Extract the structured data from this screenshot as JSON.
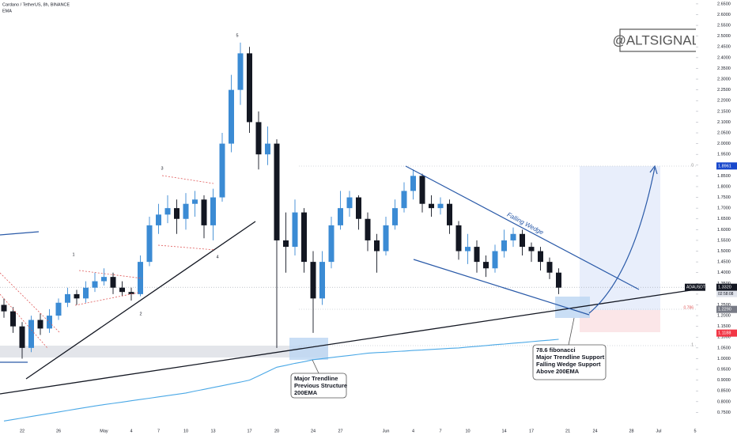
{
  "chart_data": {
    "type": "candlestick",
    "title": "Cardano / TetherUS, 8h, BINANCE",
    "watermark": "@ALTSIGNALS",
    "categories": [
      null,
      null,
      "22",
      null,
      null,
      null,
      "26",
      null,
      null,
      null,
      null,
      "May",
      null,
      null,
      "4",
      null,
      null,
      "7",
      null,
      null,
      "10",
      null,
      null,
      "13",
      null,
      null,
      null,
      "17",
      null,
      null,
      "20",
      null,
      null,
      null,
      "24",
      null,
      null,
      "27",
      null,
      null,
      null,
      null,
      "Jun",
      null,
      null,
      "4",
      null,
      null,
      "7",
      null,
      null,
      "10",
      null,
      null,
      null,
      "14",
      null,
      null,
      "17",
      null,
      null,
      null,
      "21",
      null,
      null,
      "24",
      null,
      null,
      null,
      "28",
      null,
      null,
      "Jul",
      null,
      null,
      null,
      "5"
    ],
    "open": [
      1.25,
      1.22,
      1.15,
      1.05,
      1.18,
      1.14,
      1.2,
      1.26,
      1.3,
      1.28,
      1.33,
      1.36,
      1.38,
      1.33,
      1.31,
      1.3,
      1.45,
      1.62,
      1.67,
      1.7,
      1.65,
      1.72,
      1.74,
      1.62,
      1.75,
      2.0,
      2.25,
      2.42,
      2.1,
      1.95,
      2.0,
      1.55,
      1.52,
      1.68,
      1.45,
      1.28,
      1.45,
      1.62,
      1.7,
      1.75,
      1.65,
      1.55,
      1.5,
      1.62,
      1.7,
      1.78,
      1.85,
      1.72,
      1.7,
      1.72,
      1.62,
      1.5,
      1.52,
      1.45,
      1.42,
      1.5,
      1.55,
      1.58,
      1.52,
      1.5,
      1.45,
      1.4,
      null,
      null,
      null,
      null,
      null,
      null,
      null,
      null,
      null,
      null,
      null,
      null,
      null,
      null,
      null
    ],
    "high": [
      1.28,
      1.24,
      1.17,
      1.2,
      1.21,
      1.23,
      1.28,
      1.33,
      1.32,
      1.36,
      1.4,
      1.42,
      1.4,
      1.36,
      1.33,
      1.48,
      1.66,
      1.72,
      1.76,
      1.74,
      1.77,
      1.78,
      1.76,
      1.79,
      2.05,
      2.32,
      2.47,
      2.45,
      2.15,
      2.08,
      2.02,
      1.68,
      1.74,
      1.7,
      1.5,
      1.5,
      1.66,
      1.78,
      1.78,
      1.76,
      1.68,
      1.58,
      1.66,
      1.74,
      1.82,
      1.88,
      1.86,
      1.76,
      1.75,
      1.74,
      1.64,
      1.58,
      1.55,
      1.48,
      1.53,
      1.6,
      1.61,
      1.6,
      1.54,
      1.52,
      1.47,
      1.42,
      null,
      null,
      null,
      null,
      null,
      null,
      null,
      null,
      null,
      null,
      null,
      null,
      null,
      null,
      null
    ],
    "low": [
      1.19,
      1.12,
      1.0,
      1.03,
      1.11,
      1.12,
      1.18,
      1.24,
      1.25,
      1.26,
      1.31,
      1.34,
      1.3,
      1.29,
      1.27,
      1.29,
      1.43,
      1.58,
      1.63,
      1.58,
      1.6,
      1.66,
      1.56,
      1.55,
      1.73,
      1.96,
      2.18,
      2.05,
      1.88,
      1.9,
      1.05,
      1.4,
      1.48,
      1.4,
      1.12,
      1.25,
      1.42,
      1.6,
      1.66,
      1.6,
      1.5,
      1.4,
      1.48,
      1.6,
      1.68,
      1.74,
      1.68,
      1.66,
      1.67,
      1.58,
      1.46,
      1.44,
      1.4,
      1.38,
      1.4,
      1.47,
      1.52,
      1.48,
      1.45,
      1.41,
      1.37,
      1.3,
      null,
      null,
      null,
      null,
      null,
      null,
      null,
      null,
      null,
      null,
      null,
      null,
      null,
      null,
      null
    ],
    "close": [
      1.22,
      1.15,
      1.05,
      1.18,
      1.14,
      1.2,
      1.26,
      1.3,
      1.28,
      1.33,
      1.36,
      1.38,
      1.33,
      1.31,
      1.3,
      1.45,
      1.62,
      1.67,
      1.7,
      1.65,
      1.72,
      1.74,
      1.62,
      1.75,
      2.0,
      2.25,
      2.42,
      2.1,
      1.95,
      2.0,
      1.55,
      1.52,
      1.68,
      1.45,
      1.28,
      1.45,
      1.62,
      1.7,
      1.75,
      1.65,
      1.55,
      1.5,
      1.62,
      1.7,
      1.78,
      1.85,
      1.72,
      1.7,
      1.72,
      1.62,
      1.5,
      1.52,
      1.45,
      1.42,
      1.5,
      1.55,
      1.58,
      1.52,
      1.5,
      1.45,
      1.4,
      1.33,
      null,
      null,
      null,
      null,
      null,
      null,
      null,
      null,
      null,
      null,
      null,
      null,
      null,
      null,
      null
    ],
    "up_color": "#3b8bd4",
    "down_color": "#131722",
    "series": [
      {
        "name": "EMA",
        "color": "#4aa8e6",
        "values": [
          0.71,
          0.717,
          0.724,
          0.731,
          0.738,
          0.745,
          0.752,
          0.759,
          0.766,
          0.773,
          0.78,
          0.786,
          0.792,
          0.798,
          0.804,
          0.81,
          0.816,
          0.822,
          0.828,
          0.834,
          0.84,
          0.849,
          0.857,
          0.866,
          0.874,
          0.883,
          0.891,
          0.9,
          0.92,
          0.94,
          0.96,
          0.969,
          0.978,
          0.986,
          0.995,
          1.0,
          1.005,
          1.01,
          1.015,
          1.02,
          1.025,
          1.028,
          1.03,
          1.033,
          1.035,
          1.038,
          1.04,
          1.043,
          1.045,
          1.048,
          1.05,
          1.054,
          1.057,
          1.061,
          1.065,
          1.068,
          1.072,
          1.075,
          1.079,
          1.083,
          1.086,
          1.09,
          null,
          null,
          null,
          null,
          null,
          null,
          null,
          null,
          null,
          null,
          null,
          null,
          null,
          null,
          null
        ]
      }
    ],
    "ylim": [
      0.7,
      2.668
    ],
    "yticks": [
      {
        "value": 0.75,
        "label": "0.7500"
      },
      {
        "value": 0.8,
        "label": "0.8000"
      },
      {
        "value": 0.85,
        "label": "0.8500"
      },
      {
        "value": 0.9,
        "label": "0.9000"
      },
      {
        "value": 0.95,
        "label": "0.9500"
      },
      {
        "value": 1.0,
        "label": "1.0000"
      },
      {
        "value": 1.05,
        "label": "1.0500"
      },
      {
        "value": 1.1,
        "label": "1.1000"
      },
      {
        "value": 1.15,
        "label": "1.1500"
      },
      {
        "value": 1.2,
        "label": "1.2000"
      },
      {
        "value": 1.25,
        "label": "1.2500"
      },
      {
        "value": 1.3,
        "label": "1.3000"
      },
      {
        "value": 1.35,
        "label": "1.3500"
      },
      {
        "value": 1.4,
        "label": "1.4000"
      },
      {
        "value": 1.45,
        "label": "1.4500"
      },
      {
        "value": 1.5,
        "label": "1.5000"
      },
      {
        "value": 1.55,
        "label": "1.5500"
      },
      {
        "value": 1.6,
        "label": "1.6000"
      },
      {
        "value": 1.65,
        "label": "1.6500"
      },
      {
        "value": 1.7,
        "label": "1.7000"
      },
      {
        "value": 1.75,
        "label": "1.7500"
      },
      {
        "value": 1.8,
        "label": "1.8000"
      },
      {
        "value": 1.85,
        "label": "1.8500"
      },
      {
        "value": 1.9,
        "label": "1.9000"
      },
      {
        "value": 1.95,
        "label": "1.9500"
      },
      {
        "value": 2.0,
        "label": "2.0000"
      },
      {
        "value": 2.05,
        "label": "2.0500"
      },
      {
        "value": 2.1,
        "label": "2.1000"
      },
      {
        "value": 2.15,
        "label": "2.1500"
      },
      {
        "value": 2.2,
        "label": "2.2000"
      },
      {
        "value": 2.25,
        "label": "2.2500"
      },
      {
        "value": 2.3,
        "label": "2.3000"
      },
      {
        "value": 2.35,
        "label": "2.3500"
      },
      {
        "value": 2.4,
        "label": "2.4000"
      },
      {
        "value": 2.45,
        "label": "2.4500"
      },
      {
        "value": 2.5,
        "label": "2.5000"
      },
      {
        "value": 2.55,
        "label": "2.5500"
      },
      {
        "value": 2.6,
        "label": "2.6000"
      },
      {
        "value": 2.65,
        "label": "2.6500"
      }
    ],
    "price_tags": [
      {
        "value": 1.8961,
        "color": "#1848cc"
      },
      {
        "value": 1.332,
        "label": "1.3320",
        "name": "ADAUSDT",
        "countdown": "02:58:08",
        "color": "#131722"
      },
      {
        "value": 1.229,
        "label": "1.2290",
        "color": "#787b86"
      },
      {
        "value": 1.1188,
        "color": "#f23645"
      }
    ],
    "wave_labels": [
      "5",
      "3",
      "1",
      "2",
      "4"
    ],
    "fib_labels": [
      "0",
      "0.786",
      "1"
    ],
    "pattern_label": "Falling Wedge",
    "callouts": [
      {
        "lines": [
          "78.6 fibonacci",
          "Major Trendline Support",
          "Falling Wedge Support",
          "Above 200EMA"
        ]
      },
      {
        "lines": [
          "Major Trendline",
          "Previous Structure",
          "200EMA"
        ]
      }
    ]
  }
}
